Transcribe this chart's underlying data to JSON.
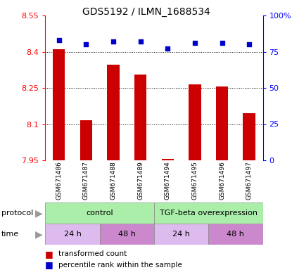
{
  "title": "GDS5192 / ILMN_1688534",
  "samples": [
    "GSM671486",
    "GSM671487",
    "GSM671488",
    "GSM671489",
    "GSM671494",
    "GSM671495",
    "GSM671496",
    "GSM671497"
  ],
  "bar_values": [
    8.41,
    8.115,
    8.345,
    8.305,
    7.957,
    8.265,
    8.255,
    8.145
  ],
  "percentile_values": [
    83,
    80,
    82,
    82,
    77,
    81,
    81,
    80
  ],
  "ylim_left": [
    7.95,
    8.55
  ],
  "ylim_right": [
    0,
    100
  ],
  "yticks_left": [
    7.95,
    8.1,
    8.25,
    8.4,
    8.55
  ],
  "ytick_labels_left": [
    "7.95",
    "8.1",
    "8.25",
    "8.4",
    "8.55"
  ],
  "yticks_right": [
    0,
    25,
    50,
    75,
    100
  ],
  "ytick_labels_right": [
    "0",
    "25",
    "50",
    "75",
    "100%"
  ],
  "bar_color": "#cc0000",
  "dot_color": "#0000cc",
  "protocol_labels": [
    "control",
    "TGF-beta overexpression"
  ],
  "protocol_colors": [
    "#aaffaa",
    "#aaffaa"
  ],
  "time_labels": [
    "24 h",
    "48 h",
    "24 h",
    "48 h"
  ],
  "time_colors_light": "#ddaaee",
  "time_colors_dark": "#cc77cc",
  "legend_bar_label": "transformed count",
  "legend_dot_label": "percentile rank within the sample"
}
